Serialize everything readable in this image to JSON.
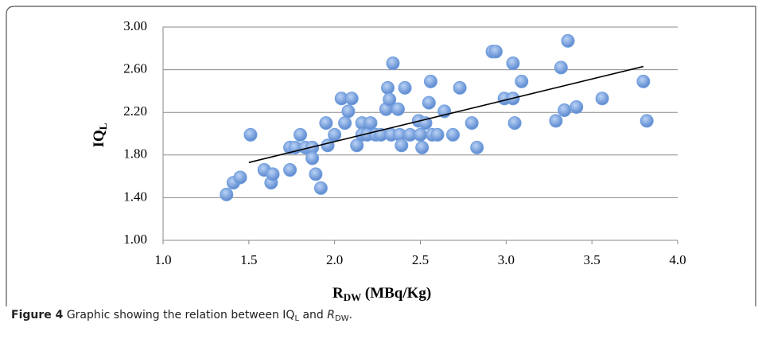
{
  "chart_data": {
    "type": "scatter",
    "x_label": {
      "main": "R",
      "sub": "DW",
      "rest": " (MBq/Kg)"
    },
    "y_label": {
      "main": "IQ",
      "sub": "L"
    },
    "caption": {
      "label": "Figure 4",
      "parts": [
        "Graphic showing the relation between IQ",
        "L",
        " and ",
        "R",
        "DW",
        "."
      ]
    },
    "xlim": [
      1.0,
      4.0
    ],
    "xticks": [
      {
        "value": 1,
        "label": "1.0"
      },
      {
        "value": 1.5,
        "label": "1.5"
      },
      {
        "value": 2,
        "label": "2.0"
      },
      {
        "value": 2.5,
        "label": "2.5"
      },
      {
        "value": 3,
        "label": "3.0"
      },
      {
        "value": 3.5,
        "label": "3.5"
      },
      {
        "value": 4,
        "label": "4.0"
      }
    ],
    "ylim": [
      1.0,
      3.0
    ],
    "yticks": [
      {
        "value": 1,
        "label": "1.00"
      },
      {
        "value": 1.4,
        "label": "1.40"
      },
      {
        "value": 1.8,
        "label": "1.80"
      },
      {
        "value": 2.2,
        "label": "2.20"
      },
      {
        "value": 2.6,
        "label": "2.60"
      },
      {
        "value": 3,
        "label": "3.00"
      }
    ],
    "grid": true,
    "color": "#6f9ee0",
    "x": [
      1.37,
      1.41,
      1.45,
      1.51,
      1.59,
      1.63,
      1.64,
      1.74,
      1.74,
      1.77,
      1.8,
      1.83,
      1.87,
      1.87,
      1.89,
      1.92,
      1.95,
      1.96,
      2.0,
      2.04,
      2.06,
      2.08,
      2.1,
      2.13,
      2.16,
      2.16,
      2.19,
      2.21,
      2.24,
      2.27,
      2.3,
      2.31,
      2.32,
      2.34,
      2.33,
      2.37,
      2.38,
      2.39,
      2.41,
      2.44,
      2.5,
      2.51,
      2.49,
      2.53,
      2.55,
      2.56,
      2.57,
      2.6,
      2.64,
      2.69,
      2.73,
      2.8,
      2.83,
      2.92,
      2.94,
      2.99,
      3.04,
      3.04,
      3.05,
      3.09,
      3.29,
      3.32,
      3.34,
      3.36,
      3.41,
      3.56,
      3.8,
      3.82
    ],
    "y": [
      1.43,
      1.54,
      1.59,
      1.99,
      1.66,
      1.54,
      1.62,
      1.66,
      1.87,
      1.87,
      1.99,
      1.87,
      1.87,
      1.77,
      1.62,
      1.49,
      2.1,
      1.89,
      1.99,
      2.33,
      2.1,
      2.21,
      2.33,
      1.89,
      2.1,
      1.99,
      1.99,
      2.1,
      1.99,
      1.99,
      2.23,
      2.43,
      2.32,
      2.66,
      1.99,
      2.23,
      1.99,
      1.89,
      2.43,
      1.99,
      1.99,
      1.87,
      2.12,
      2.1,
      2.29,
      2.49,
      1.99,
      1.99,
      2.21,
      1.99,
      2.43,
      2.1,
      1.87,
      2.77,
      2.77,
      2.33,
      2.33,
      2.66,
      2.1,
      2.49,
      2.12,
      2.62,
      2.22,
      2.87,
      2.25,
      2.33,
      2.49,
      2.12
    ],
    "trendline": {
      "x": [
        1.5,
        3.8
      ],
      "y": [
        1.73,
        2.63
      ],
      "color": "#000000"
    }
  }
}
